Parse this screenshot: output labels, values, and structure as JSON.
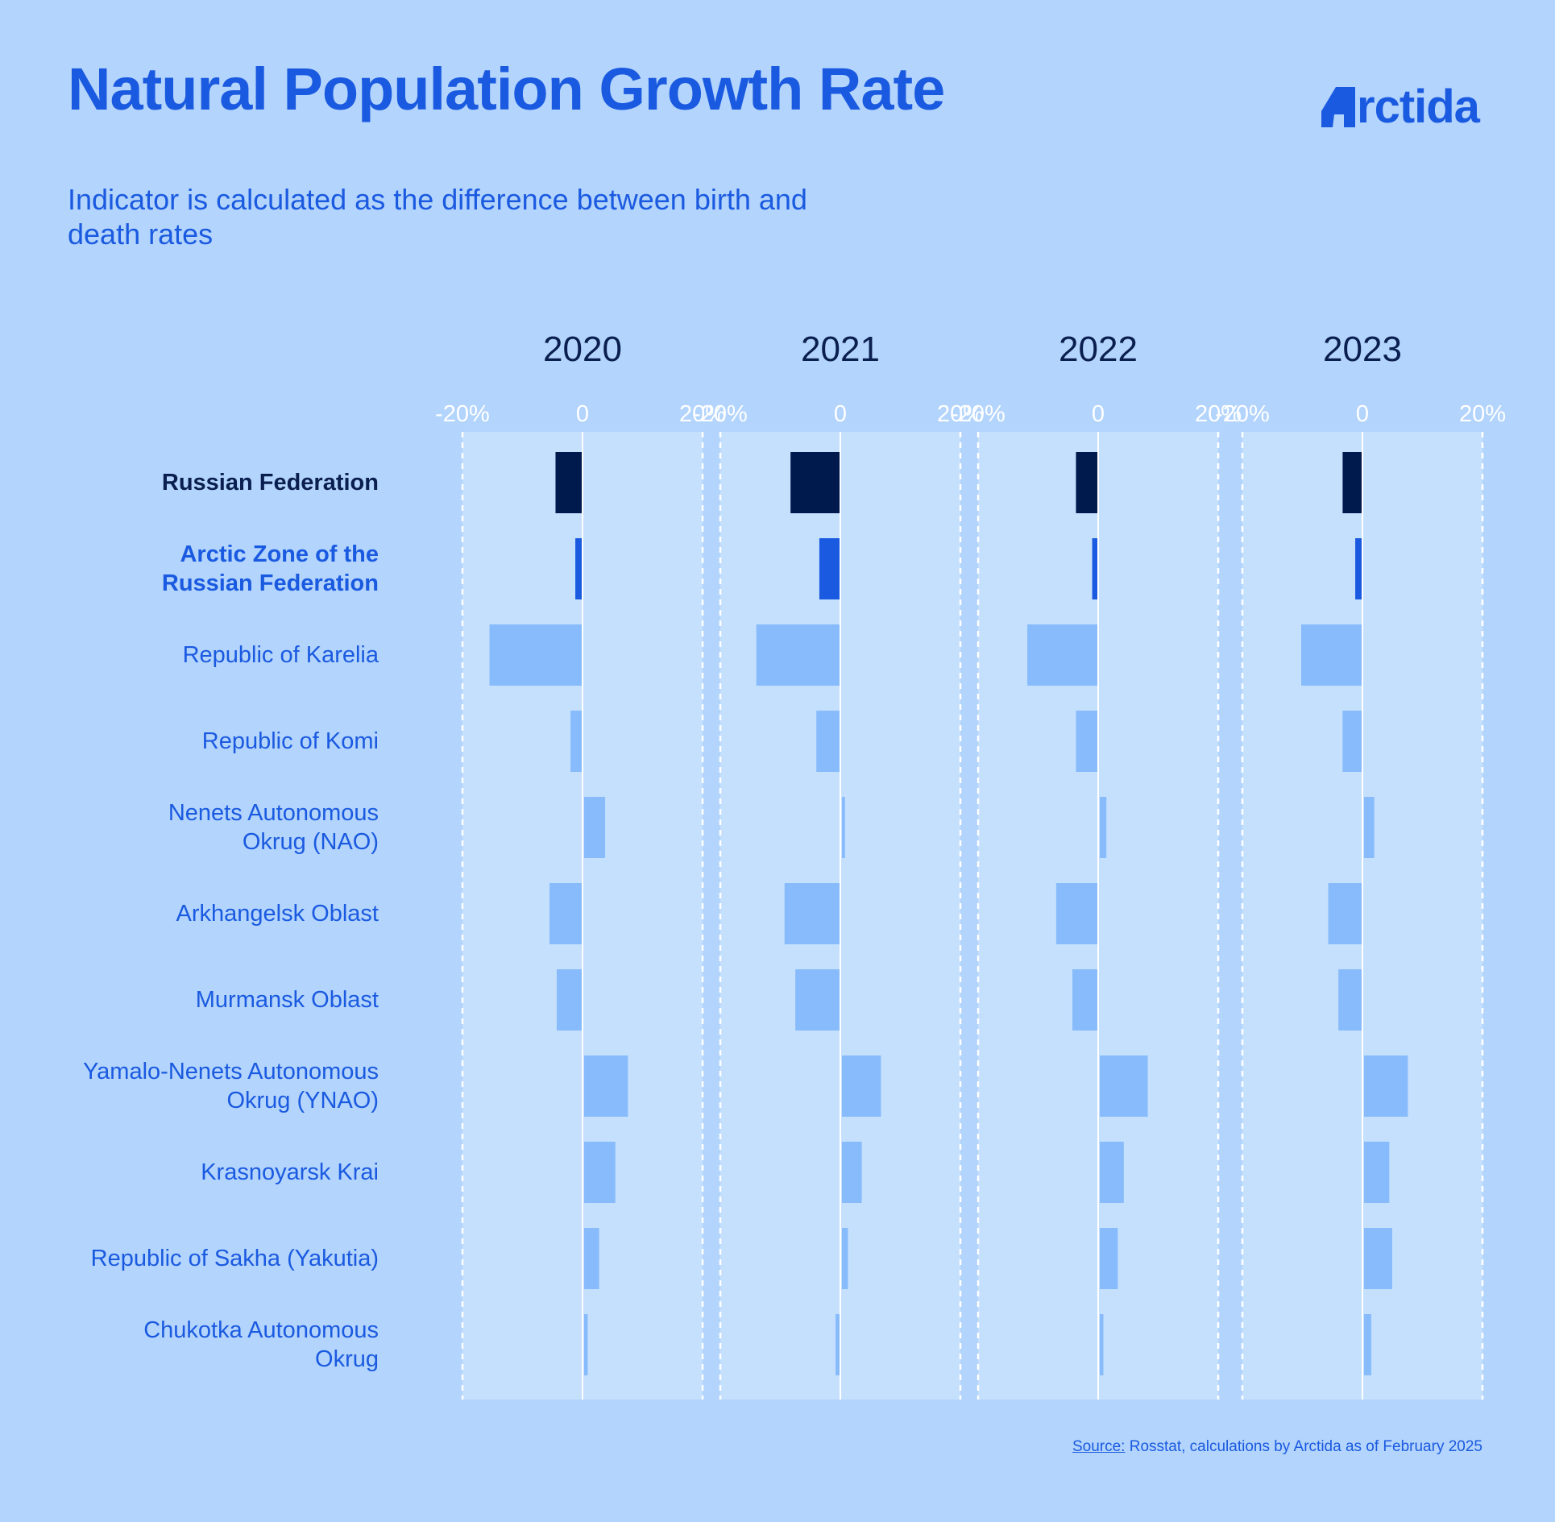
{
  "title": "Natural Population Growth Rate",
  "subtitle": "Indicator is calculated as the difference between birth and death rates",
  "logo": {
    "text": "rctida"
  },
  "source": {
    "key": "Source:",
    "text": " Rosstat, calculations by Arctida as of February 2025"
  },
  "colors": {
    "background": "#b3d4fc",
    "panel": "#c5e0fd",
    "russian_federation": "#001a4d",
    "arctic_zone": "#1a5ae0",
    "regions": "#87bbfc",
    "axis": "#ffffff",
    "text_blue": "#1a5ae0",
    "text_dark": "#0a1f4f"
  },
  "chart_data": {
    "type": "bar",
    "orientation": "horizontal",
    "xlim": [
      -20,
      20
    ],
    "tick_labels": [
      "-20%",
      "0",
      "20%"
    ],
    "grid": false,
    "categories": [
      "Russian Federation",
      "Arctic Zone of the Russian Federation",
      "Republic of Karelia",
      "Republic of Komi",
      "Nenets Autonomous Okrug (NAO)",
      "Arkhangelsk Oblast",
      "Murmansk Oblast",
      "Yamalo-Nenets Autonomous Okrug (YNAO)",
      "Krasnoyarsk Krai",
      "Republic of Sakha (Yakutia)",
      "Chukotka Autonomous Okrug"
    ],
    "category_lines": [
      [
        "Russian Federation"
      ],
      [
        "Arctic Zone of the",
        "Russian Federation"
      ],
      [
        "Republic of Karelia"
      ],
      [
        "Republic of Komi"
      ],
      [
        "Nenets Autonomous",
        "Okrug (NAO)"
      ],
      [
        "Arkhangelsk Oblast"
      ],
      [
        "Murmansk Oblast"
      ],
      [
        "Yamalo-Nenets Autonomous",
        "Okrug (YNAO)"
      ],
      [
        "Krasnoyarsk Krai"
      ],
      [
        "Republic of Sakha (Yakutia)"
      ],
      [
        "Chukotka Autonomous",
        "Okrug"
      ]
    ],
    "series": [
      {
        "name": "2020",
        "values": [
          -4.5,
          -1.2,
          -15.5,
          -2.0,
          3.5,
          -5.5,
          -4.3,
          7.3,
          5.2,
          2.5,
          0.6
        ]
      },
      {
        "name": "2021",
        "values": [
          -8.3,
          -3.5,
          -14.0,
          -4.0,
          0.5,
          -9.3,
          -7.5,
          6.5,
          3.3,
          1.0,
          -0.8
        ]
      },
      {
        "name": "2022",
        "values": [
          -3.7,
          -1.0,
          -11.8,
          -3.7,
          1.1,
          -7.0,
          -4.3,
          8.0,
          4.0,
          3.0,
          0.6
        ]
      },
      {
        "name": "2023",
        "values": [
          -3.3,
          -1.2,
          -10.2,
          -3.3,
          1.7,
          -5.7,
          -4.0,
          7.3,
          4.2,
          4.7,
          1.2
        ]
      }
    ]
  }
}
